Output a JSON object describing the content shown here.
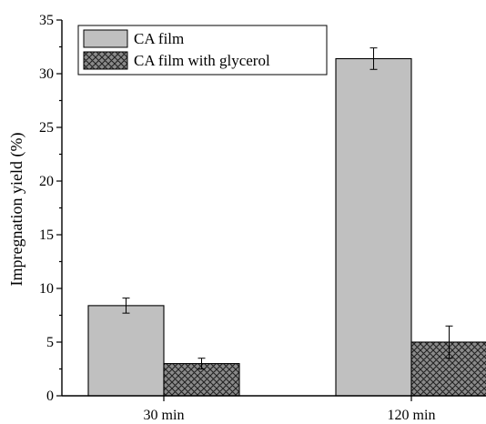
{
  "chart_data": {
    "type": "bar",
    "title": "",
    "xlabel": "",
    "ylabel": "Impregnation yield (%)",
    "categories": [
      "30 min",
      "120 min"
    ],
    "ylim": [
      0,
      35
    ],
    "yticks": [
      0,
      5,
      10,
      15,
      20,
      25,
      30,
      35
    ],
    "grid": false,
    "legend_position": "top-left",
    "series": [
      {
        "name": "CA film",
        "values": [
          8.4,
          31.4
        ],
        "errors": [
          0.7,
          1.0
        ],
        "fill": "#c0c0c0",
        "pattern": "solid"
      },
      {
        "name": "CA film with glycerol",
        "values": [
          3.0,
          5.0
        ],
        "errors": [
          0.5,
          1.5
        ],
        "fill": "#888888",
        "pattern": "crosshatch"
      }
    ]
  }
}
